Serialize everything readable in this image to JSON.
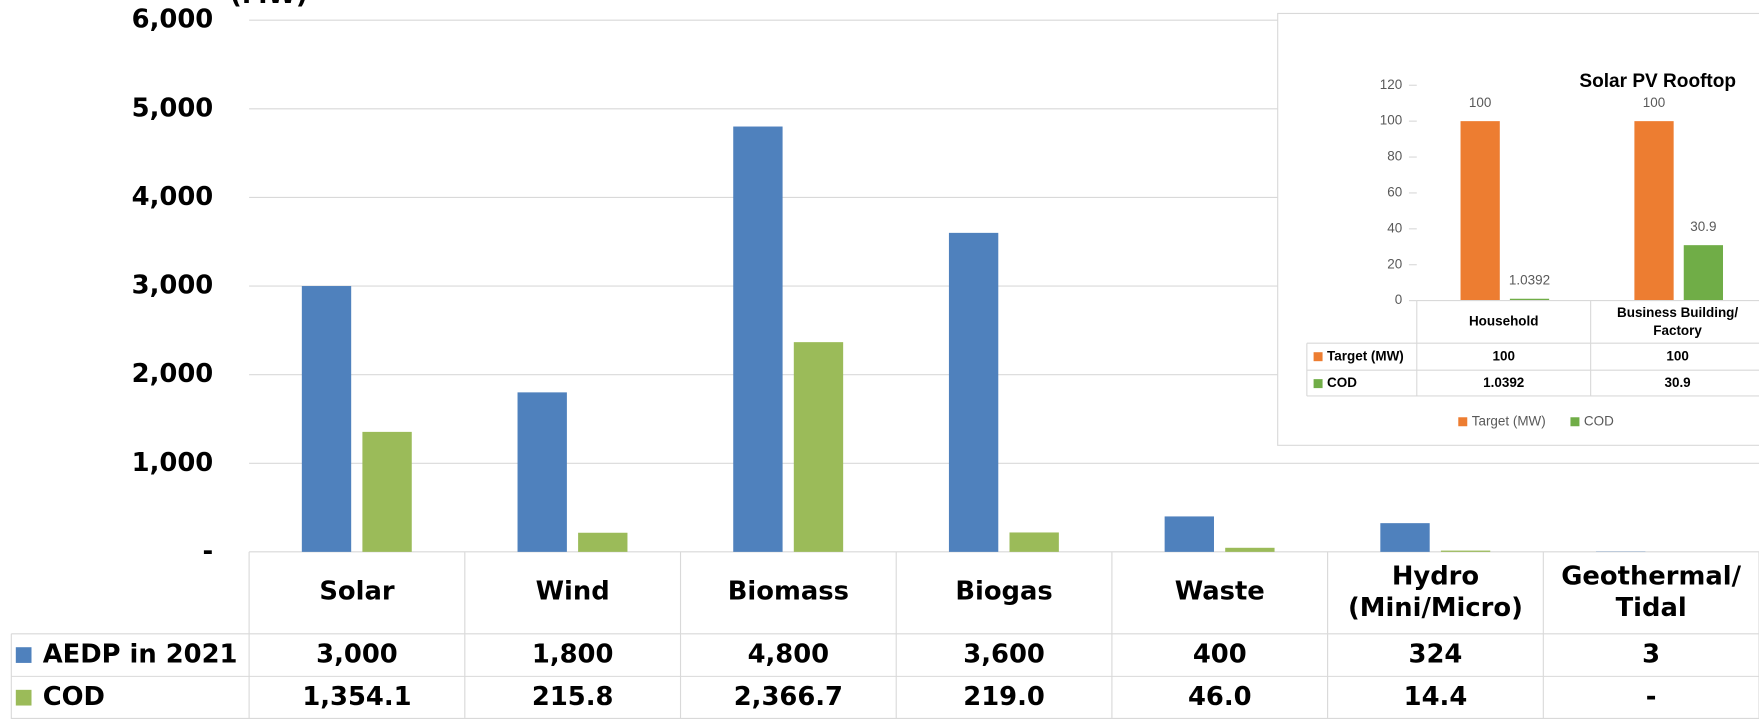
{
  "chart_data": [
    {
      "type": "bar",
      "y_label": "(MW)",
      "categories": [
        "Solar",
        "Wind",
        "Biomass",
        "Biogas",
        "Waste",
        "Hydro\n(Mini/Micro)",
        "Geothermal/\nTidal"
      ],
      "series": [
        {
          "name": "AEDP in 2021",
          "color": "#4f81bd",
          "values": [
            3000,
            1800,
            4800,
            3600,
            400,
            324,
            3
          ],
          "value_labels": [
            "3,000",
            "1,800",
            "4,800",
            "3,600",
            "400",
            "324",
            "3"
          ]
        },
        {
          "name": "COD",
          "color": "#9bbb59",
          "values": [
            1354.1,
            215.8,
            2366.7,
            219.0,
            46.0,
            14.4,
            0
          ],
          "value_labels": [
            "1,354.1",
            "215.8",
            "2,366.7",
            "219.0",
            "46.0",
            "14.4",
            "-"
          ]
        }
      ],
      "ylim": [
        0,
        6000
      ],
      "yticks": [
        {
          "value": 0,
          "label": "-"
        },
        {
          "value": 1000,
          "label": "1,000"
        },
        {
          "value": 2000,
          "label": "2,000"
        },
        {
          "value": 3000,
          "label": "3,000"
        },
        {
          "value": 4000,
          "label": "4,000"
        },
        {
          "value": 5000,
          "label": "5,000"
        },
        {
          "value": 6000,
          "label": "6,000"
        }
      ],
      "grid": true
    },
    {
      "type": "bar",
      "title": "Solar PV Rooftop",
      "categories": [
        "Household",
        "Business Building/\nFactory"
      ],
      "series": [
        {
          "name": "Target (MW)",
          "color": "#ed7d31",
          "values": [
            100,
            100
          ]
        },
        {
          "name": "COD",
          "color": "#70ad47",
          "values": [
            1.0392,
            30.9
          ]
        }
      ],
      "ylim": [
        0,
        120
      ],
      "yticks": [
        0,
        20,
        40,
        60,
        80,
        100,
        120
      ],
      "grid": false
    }
  ]
}
